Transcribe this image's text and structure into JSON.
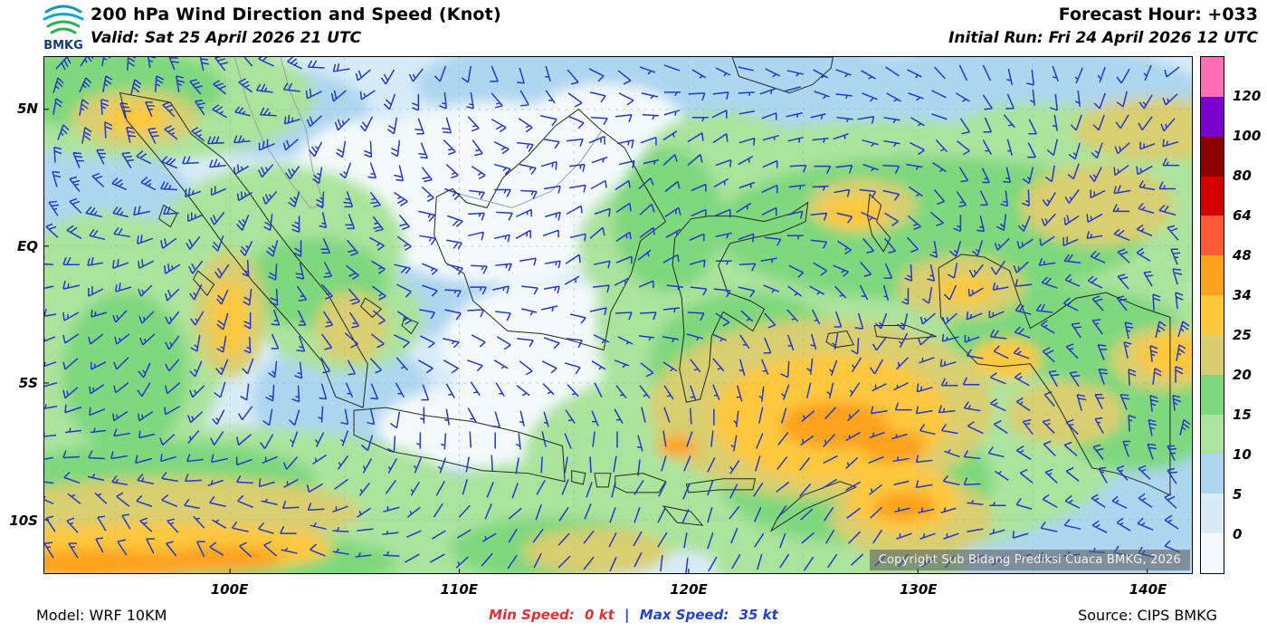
{
  "header": {
    "logo_text": "BMKG",
    "title": "200 hPa Wind Direction and Speed (Knot)",
    "valid_label": "Valid: Sat 25 April 2026 21 UTC",
    "forecast_hour_label": "Forecast Hour: +033",
    "initial_run_label": "Initial Run: Fri 24 April 2026 12 UTC"
  },
  "map": {
    "y_axis_labels": [
      "5N",
      "EQ",
      "5S",
      "10S"
    ],
    "x_axis_labels": [
      "100E",
      "110E",
      "120E",
      "130E",
      "140E"
    ],
    "copyright": "Copyright Sub Bidang Prediksi Cuaca BMKG, 2026",
    "barb_color": "#2438cc",
    "ocean_base_color": "#d8ecf8",
    "coast_color": "#1f2a1f",
    "border_color": "#9aa0a6",
    "grid_color": "#9fb4c4"
  },
  "colorbar": {
    "labels_top_to_bottom": [
      "120",
      "100",
      "80",
      "64",
      "48",
      "34",
      "25",
      "20",
      "15",
      "10",
      "5",
      "0"
    ],
    "colors_top_to_bottom": [
      "#ff6eb4",
      "#7a00cc",
      "#8c0000",
      "#d40000",
      "#ff5a36",
      "#ffa21e",
      "#ffc83c",
      "#d9ce6f",
      "#7ed87e",
      "#abe39c",
      "#aed6f0",
      "#d8ecf8",
      "#f4fafd"
    ]
  },
  "footer": {
    "model_label": "Model: WRF 10KM",
    "min_speed_label": "Min Speed:",
    "min_speed_value": "0 kt",
    "separator": "|",
    "max_speed_label": "Max Speed:",
    "max_speed_value": "35 kt",
    "source_label": "Source: CIPS BMKG",
    "min_color": "#e53030",
    "max_color": "#2244cc",
    "separator_color": "#2244cc"
  },
  "chart_data": {
    "type": "heatmap",
    "title": "200 hPa Wind Direction and Speed (Knot)",
    "valid_time": "Sat 25 April 2026 21 UTC",
    "initial_run": "Fri 24 April 2026 12 UTC",
    "forecast_hour": "+033",
    "units": "kt",
    "speed_levels_kt": [
      0,
      5,
      10,
      15,
      20,
      25,
      34,
      48,
      64,
      80,
      100,
      120
    ],
    "min_speed_kt": 0,
    "max_speed_kt": 35,
    "x_tick_labels": [
      "100E",
      "110E",
      "120E",
      "130E",
      "140E"
    ],
    "y_tick_labels": [
      "5N",
      "EQ",
      "5S",
      "10S"
    ],
    "legend_position": "right",
    "model": "WRF 10KM",
    "source": "CIPS BMKG"
  }
}
